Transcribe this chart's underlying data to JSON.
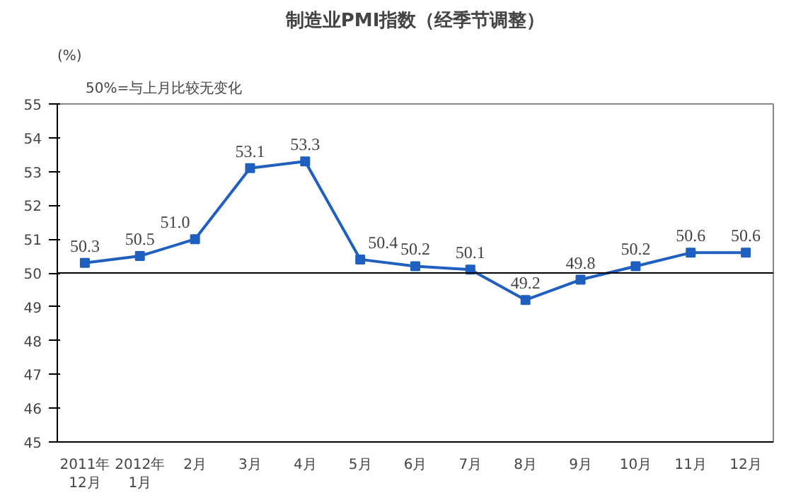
{
  "chart_data": {
    "type": "line",
    "title": "制造业PMI指数（经季节调整）",
    "subtitle": "50%=与上月比较无变化",
    "ylabel": "(%)",
    "categories": [
      "2011年\n12月",
      "2012年\n1月",
      "2月",
      "3月",
      "4月",
      "5月",
      "6月",
      "7月",
      "8月",
      "9月",
      "10月",
      "11月",
      "12月"
    ],
    "series": [
      {
        "color": "#1f5fbf",
        "values": [
          50.3,
          50.5,
          51.0,
          53.1,
          53.3,
          50.4,
          50.2,
          50.1,
          49.2,
          49.8,
          50.2,
          50.6,
          50.6
        ],
        "value_labels": [
          "50.3",
          "50.5",
          "51.0",
          "53.1",
          "53.3",
          "50.4",
          "50.2",
          "50.1",
          "49.2",
          "49.8",
          "50.2",
          "50.6",
          "50.6"
        ]
      }
    ],
    "ylim": [
      45,
      55
    ],
    "yticks": [
      45,
      46,
      47,
      48,
      49,
      50,
      51,
      52,
      53,
      54,
      55
    ],
    "ref_lines": [
      {
        "axis": "y",
        "value": 50,
        "label": null,
        "color": "#000000"
      }
    ],
    "grid": false,
    "marker": "square",
    "line_style": "solid"
  }
}
